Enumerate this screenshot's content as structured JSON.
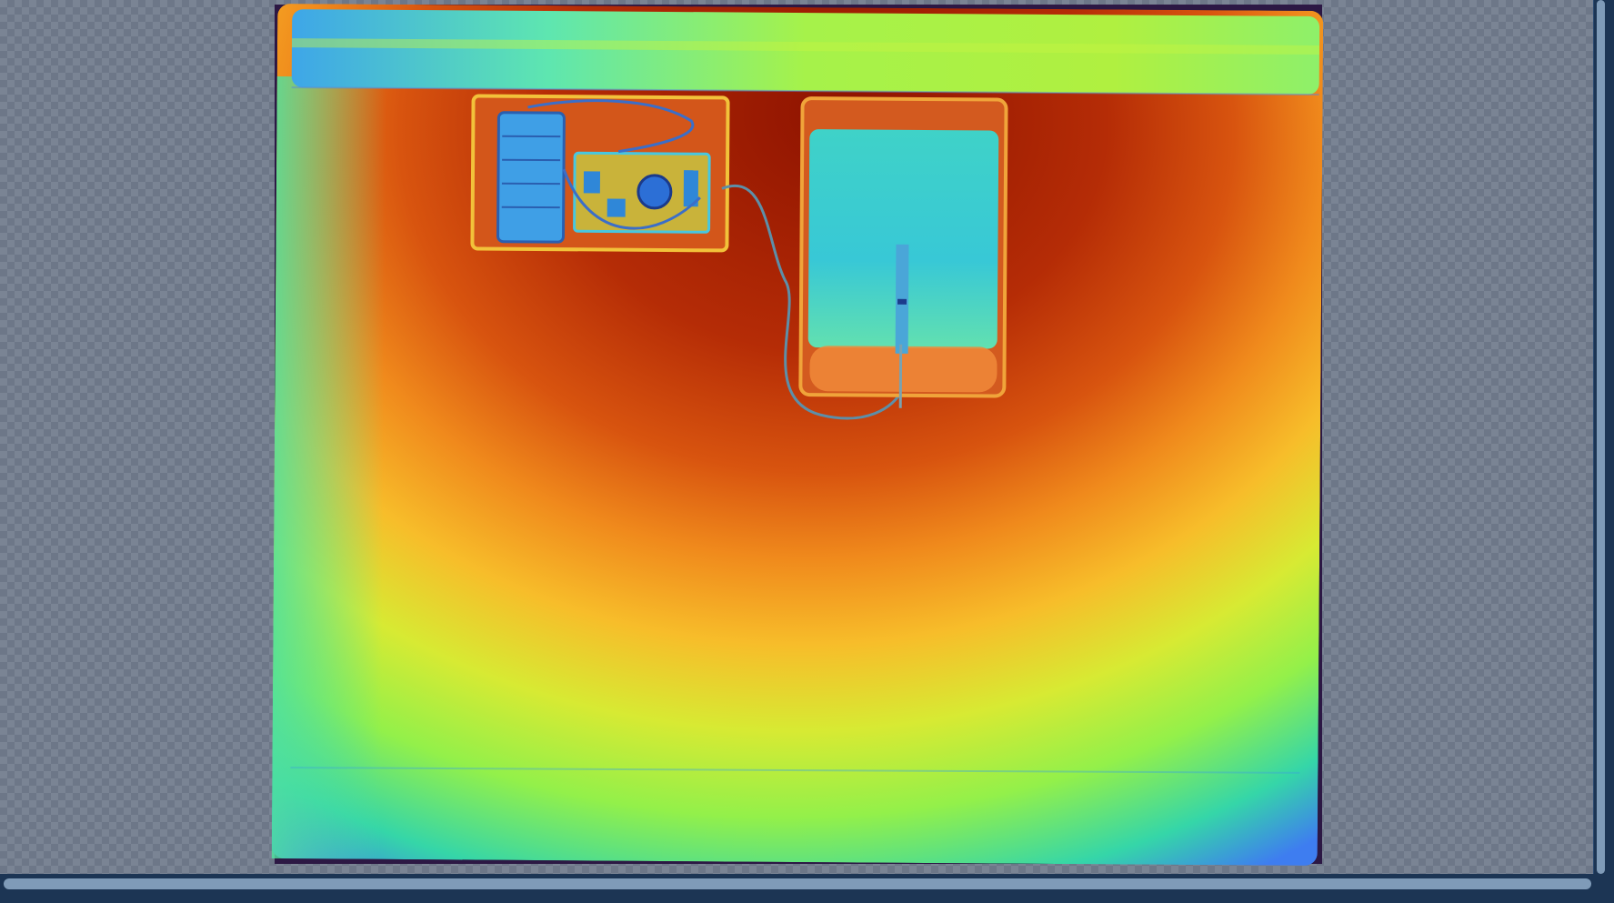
{
  "viewer": {
    "image_kind": "xray-false-color-scan",
    "colormap": "jet",
    "background": "transparency-checkerboard"
  },
  "colors": {
    "frame_border": "#2c1844",
    "panel_background": "#1c3554",
    "scroll_thumb": "#7f9bb8",
    "checker_light": "#7a8494",
    "checker_dark": "#6d7788"
  },
  "scrollbars": {
    "vertical": {
      "position": 0.0,
      "visible_fraction": 1.0
    },
    "horizontal": {
      "position": 0.0,
      "visible_fraction": 1.0
    }
  }
}
